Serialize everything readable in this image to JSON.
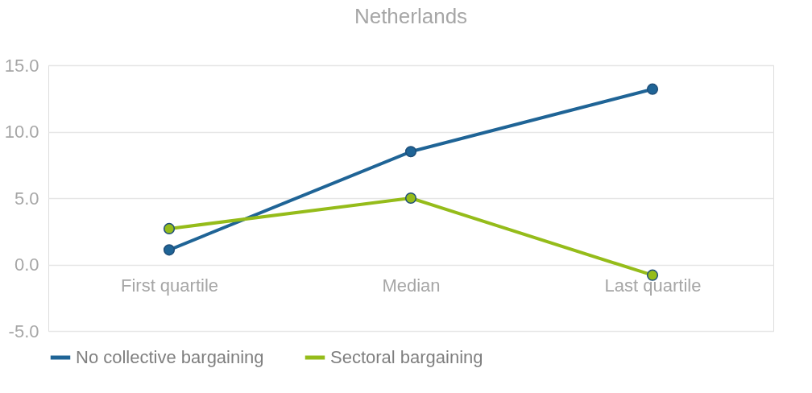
{
  "chart_data": {
    "type": "line",
    "title": "Netherlands",
    "categories": [
      "First quartile",
      "Median",
      "Last quartile"
    ],
    "series": [
      {
        "name": "No collective bargaining",
        "color": "#1f6496",
        "values": [
          1.1,
          8.5,
          13.2
        ]
      },
      {
        "name": "Sectoral bargaining",
        "color": "#95bc1a",
        "values": [
          2.7,
          5.0,
          -0.8
        ]
      }
    ],
    "ylim": [
      -5,
      15
    ],
    "yticks": [
      {
        "value": -5,
        "label": "-5.0"
      },
      {
        "value": 0,
        "label": "0.0"
      },
      {
        "value": 5,
        "label": "5.0"
      },
      {
        "value": 10,
        "label": "10.0"
      },
      {
        "value": 15,
        "label": "15.0"
      }
    ],
    "grid": "y",
    "legend": "bottom",
    "marker": "circle",
    "line_style": "solid"
  }
}
